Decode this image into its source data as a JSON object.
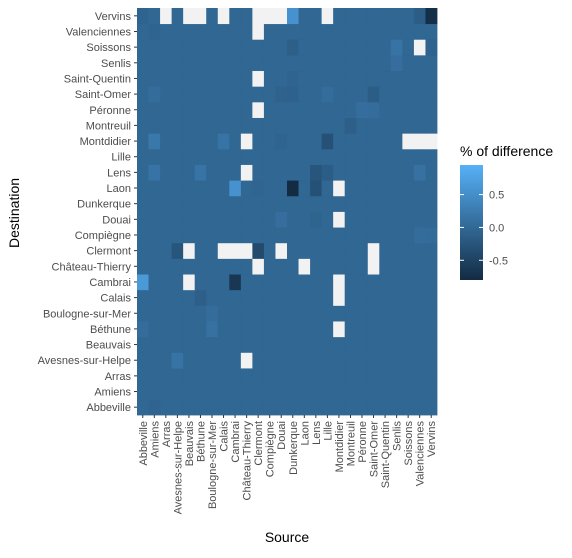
{
  "chart_data": {
    "type": "heatmap",
    "xlabel": "Source",
    "ylabel": "Destination",
    "x_categories": [
      "Abbeville",
      "Amiens",
      "Arras",
      "Avesnes-sur-Helpe",
      "Beauvais",
      "Béthune",
      "Boulogne-sur-Mer",
      "Calais",
      "Cambrai",
      "Château-Thierry",
      "Clermont",
      "Compiègne",
      "Douai",
      "Dunkerque",
      "Laon",
      "Lens",
      "Lille",
      "Montdidier",
      "Montreuil",
      "Péronne",
      "Saint-Omer",
      "Saint-Quentin",
      "Senlis",
      "Soissons",
      "Valenciennes",
      "Vervins"
    ],
    "y_categories": [
      "Abbeville",
      "Amiens",
      "Arras",
      "Avesnes-sur-Helpe",
      "Beauvais",
      "Béthune",
      "Boulogne-sur-Mer",
      "Calais",
      "Cambrai",
      "Château-Thierry",
      "Clermont",
      "Compiègne",
      "Douai",
      "Dunkerque",
      "Laon",
      "Lens",
      "Lille",
      "Montdidier",
      "Montreuil",
      "Péronne",
      "Saint-Omer",
      "Saint-Quentin",
      "Senlis",
      "Soissons",
      "Valenciennes",
      "Vervins"
    ],
    "default_value": -0.02,
    "cells": [
      [
        "Vervins",
        "Abbeville",
        -0.05
      ],
      [
        "Vervins",
        "Arras",
        "NA"
      ],
      [
        "Vervins",
        "Beauvais",
        "NA"
      ],
      [
        "Vervins",
        "Béthune",
        "NA"
      ],
      [
        "Vervins",
        "Calais",
        "NA"
      ],
      [
        "Vervins",
        "Clermont",
        "NA"
      ],
      [
        "Vervins",
        "Compiègne",
        "NA"
      ],
      [
        "Vervins",
        "Douai",
        "NA"
      ],
      [
        "Vervins",
        "Dunkerque",
        0.55
      ],
      [
        "Vervins",
        "Lille",
        "NA"
      ],
      [
        "Vervins",
        "Valenciennes",
        -0.15
      ],
      [
        "Vervins",
        "Vervins",
        -0.75
      ],
      [
        "Valenciennes",
        "Clermont",
        "NA"
      ],
      [
        "Valenciennes",
        "Amiens",
        -0.05
      ],
      [
        "Soissons",
        "Dunkerque",
        -0.12
      ],
      [
        "Soissons",
        "Senlis",
        0.15
      ],
      [
        "Soissons",
        "Valenciennes",
        "NA"
      ],
      [
        "Soissons",
        "Vervins",
        -0.08
      ],
      [
        "Senlis",
        "Senlis",
        0.08
      ],
      [
        "Saint-Quentin",
        "Clermont",
        "NA"
      ],
      [
        "Saint-Quentin",
        "Dunkerque",
        -0.05
      ],
      [
        "Saint-Omer",
        "Amiens",
        0.06
      ],
      [
        "Saint-Omer",
        "Douai",
        -0.08
      ],
      [
        "Saint-Omer",
        "Dunkerque",
        -0.1
      ],
      [
        "Saint-Omer",
        "Lille",
        0.06
      ],
      [
        "Saint-Omer",
        "Saint-Omer",
        -0.15
      ],
      [
        "Péronne",
        "Clermont",
        "NA"
      ],
      [
        "Péronne",
        "Saint-Omer",
        0.06
      ],
      [
        "Péronne",
        "Péronne",
        0.08
      ],
      [
        "Montreuil",
        "Montreuil",
        -0.12
      ],
      [
        "Montdidier",
        "Amiens",
        0.2
      ],
      [
        "Montdidier",
        "Calais",
        0.15
      ],
      [
        "Montdidier",
        "Château-Thierry",
        "NA"
      ],
      [
        "Montdidier",
        "Douai",
        -0.06
      ],
      [
        "Montdidier",
        "Lille",
        -0.3
      ],
      [
        "Montdidier",
        "Soissons",
        "NA"
      ],
      [
        "Montdidier",
        "Valenciennes",
        "NA"
      ],
      [
        "Montdidier",
        "Vervins",
        "NA"
      ],
      [
        "Lens",
        "Amiens",
        0.15
      ],
      [
        "Lens",
        "Béthune",
        0.15
      ],
      [
        "Lens",
        "Château-Thierry",
        "NA"
      ],
      [
        "Lens",
        "Lens",
        -0.25
      ],
      [
        "Lens",
        "Lille",
        -0.15
      ],
      [
        "Lens",
        "Valenciennes",
        0.12
      ],
      [
        "Laon",
        "Clermont",
        -0.04
      ],
      [
        "Laon",
        "Cambrai",
        0.55
      ],
      [
        "Laon",
        "Dunkerque",
        -0.85
      ],
      [
        "Laon",
        "Lens",
        -0.3
      ],
      [
        "Laon",
        "Montdidier",
        "NA"
      ],
      [
        "Douai",
        "Douai",
        0.08
      ],
      [
        "Douai",
        "Lens",
        -0.06
      ],
      [
        "Douai",
        "Montdidier",
        "NA"
      ],
      [
        "Compiègne",
        "Valenciennes",
        0.06
      ],
      [
        "Compiègne",
        "Vervins",
        0.04
      ],
      [
        "Clermont",
        "Avesnes-sur-Helpe",
        -0.25
      ],
      [
        "Clermont",
        "Beauvais",
        "NA"
      ],
      [
        "Clermont",
        "Calais",
        "NA"
      ],
      [
        "Clermont",
        "Cambrai",
        "NA"
      ],
      [
        "Clermont",
        "Château-Thierry",
        "NA"
      ],
      [
        "Clermont",
        "Clermont",
        -0.4
      ],
      [
        "Clermont",
        "Douai",
        "NA"
      ],
      [
        "Clermont",
        "Saint-Omer",
        "NA"
      ],
      [
        "Château-Thierry",
        "Clermont",
        "NA"
      ],
      [
        "Château-Thierry",
        "Laon",
        "NA"
      ],
      [
        "Château-Thierry",
        "Saint-Omer",
        "NA"
      ],
      [
        "Cambrai",
        "Abbeville",
        0.65
      ],
      [
        "Cambrai",
        "Beauvais",
        "NA"
      ],
      [
        "Cambrai",
        "Cambrai",
        -0.65
      ],
      [
        "Cambrai",
        "Montdidier",
        "NA"
      ],
      [
        "Calais",
        "Montdidier",
        "NA"
      ],
      [
        "Calais",
        "Béthune",
        -0.12
      ],
      [
        "Boulogne-sur-Mer",
        "Boulogne-sur-Mer",
        0.06
      ],
      [
        "Béthune",
        "Boulogne-sur-Mer",
        0.12
      ],
      [
        "Béthune",
        "Montdidier",
        "NA"
      ],
      [
        "Béthune",
        "Abbeville",
        0.06
      ],
      [
        "Avesnes-sur-Helpe",
        "Avesnes-sur-Helpe",
        0.15
      ],
      [
        "Avesnes-sur-Helpe",
        "Château-Thierry",
        "NA"
      ],
      [
        "Abbeville",
        "Amiens",
        -0.05
      ]
    ],
    "na_color": "#f2f2f2",
    "color_scale": {
      "low": -0.8,
      "high": 0.95,
      "low_color": "#132b43",
      "high_color": "#56b1f7",
      "title": "% of difference",
      "breaks": [
        0.5,
        0.0,
        -0.5
      ],
      "break_labels": [
        "0.5",
        "0.0",
        "-0.5"
      ]
    },
    "grid": false,
    "legend_position": "right"
  }
}
